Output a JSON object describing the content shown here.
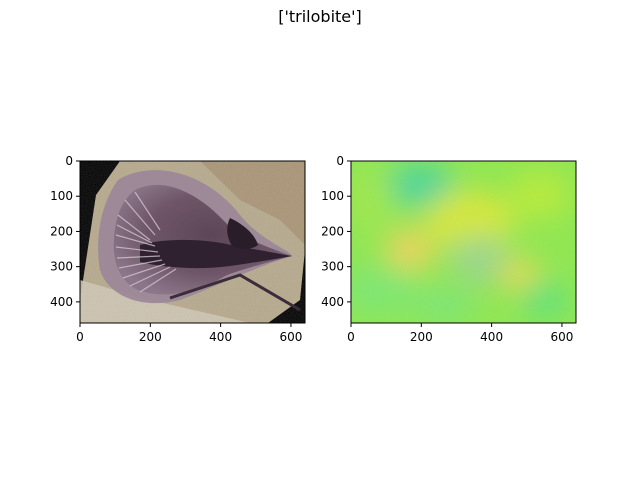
{
  "suptitle": "['trilobite']",
  "chart_data": [
    {
      "type": "image",
      "content": "trilobite fossil photograph",
      "xlim": [
        0,
        640
      ],
      "ylim": [
        460,
        0
      ],
      "xticks": [
        0,
        200,
        400,
        600
      ],
      "yticks": [
        0,
        100,
        200,
        300,
        400
      ]
    },
    {
      "type": "heatmap",
      "content": "attribution map (green/yellow/orange)",
      "xlim": [
        0,
        640
      ],
      "ylim": [
        460,
        0
      ],
      "xticks": [
        0,
        200,
        400,
        600
      ],
      "yticks": [
        0,
        100,
        200,
        300,
        400
      ]
    }
  ],
  "colors": {
    "background": "#000000",
    "rock": "#b9ab8f",
    "trilobite_body": "#3e2a3c",
    "heat_green": "#6fea5a",
    "heat_yellow": "#c8ea3a",
    "heat_orange": "#e8d65a",
    "heat_teal": "#4ed69a"
  }
}
